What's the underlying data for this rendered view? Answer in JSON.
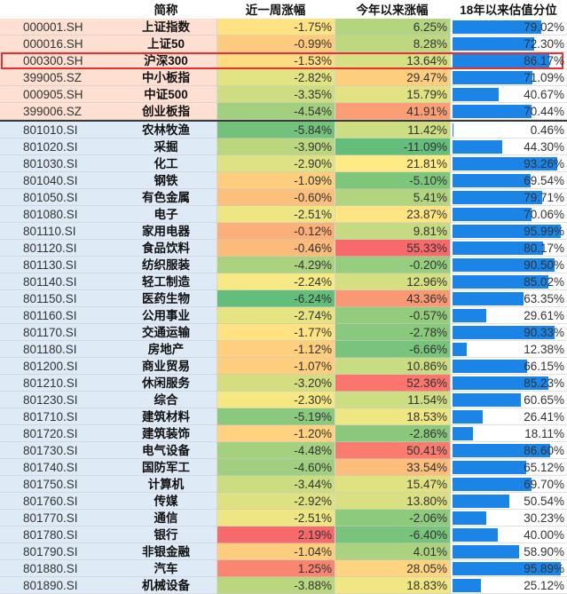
{
  "headers": {
    "name": "简称",
    "week": "近一周涨幅",
    "ytd": "今年以来涨幅",
    "pct": "18年以来估值分位"
  },
  "highlighted_code": "000300.SH",
  "colors": {
    "index_bg": "#fde0d2",
    "industry_bg": "#deeaf6",
    "bar": "#1a85e6",
    "highlight_border": "#e8312f"
  },
  "rows": [
    {
      "code": "000001.SH",
      "name": "上证指数",
      "week": "-1.75%",
      "ytd": "6.25%",
      "pct": "79.02%",
      "group": "index"
    },
    {
      "code": "000016.SH",
      "name": "上证50",
      "week": "-0.99%",
      "ytd": "8.28%",
      "pct": "72.30%",
      "group": "index"
    },
    {
      "code": "000300.SH",
      "name": "沪深300",
      "week": "-1.53%",
      "ytd": "13.64%",
      "pct": "86.17%",
      "group": "index"
    },
    {
      "code": "399005.SZ",
      "name": "中小板指",
      "week": "-2.82%",
      "ytd": "29.47%",
      "pct": "71.09%",
      "group": "index"
    },
    {
      "code": "000905.SH",
      "name": "中证500",
      "week": "-3.35%",
      "ytd": "15.79%",
      "pct": "40.67%",
      "group": "index"
    },
    {
      "code": "399006.SZ",
      "name": "创业板指",
      "week": "-4.54%",
      "ytd": "41.91%",
      "pct": "70.44%",
      "group": "index"
    },
    {
      "code": "801010.SI",
      "name": "农林牧渔",
      "week": "-5.84%",
      "ytd": "11.42%",
      "pct": "0.46%",
      "group": "industry"
    },
    {
      "code": "801020.SI",
      "name": "采掘",
      "week": "-3.90%",
      "ytd": "-11.09%",
      "pct": "44.30%",
      "group": "industry"
    },
    {
      "code": "801030.SI",
      "name": "化工",
      "week": "-2.90%",
      "ytd": "21.81%",
      "pct": "93.26%",
      "group": "industry"
    },
    {
      "code": "801040.SI",
      "name": "钢铁",
      "week": "-1.09%",
      "ytd": "-5.10%",
      "pct": "69.54%",
      "group": "industry"
    },
    {
      "code": "801050.SI",
      "name": "有色金属",
      "week": "-0.60%",
      "ytd": "5.41%",
      "pct": "79.71%",
      "group": "industry"
    },
    {
      "code": "801080.SI",
      "name": "电子",
      "week": "-2.51%",
      "ytd": "23.87%",
      "pct": "70.06%",
      "group": "industry"
    },
    {
      "code": "801110.SI",
      "name": "家用电器",
      "week": "-0.12%",
      "ytd": "9.81%",
      "pct": "95.99%",
      "group": "industry"
    },
    {
      "code": "801120.SI",
      "name": "食品饮料",
      "week": "-0.46%",
      "ytd": "55.33%",
      "pct": "80.17%",
      "group": "industry"
    },
    {
      "code": "801130.SI",
      "name": "纺织服装",
      "week": "-4.29%",
      "ytd": "-0.20%",
      "pct": "90.50%",
      "group": "industry"
    },
    {
      "code": "801140.SI",
      "name": "轻工制造",
      "week": "-2.24%",
      "ytd": "12.96%",
      "pct": "85.02%",
      "group": "industry"
    },
    {
      "code": "801150.SI",
      "name": "医药生物",
      "week": "-6.24%",
      "ytd": "43.36%",
      "pct": "63.35%",
      "group": "industry"
    },
    {
      "code": "801160.SI",
      "name": "公用事业",
      "week": "-2.74%",
      "ytd": "-0.57%",
      "pct": "29.61%",
      "group": "industry"
    },
    {
      "code": "801170.SI",
      "name": "交通运输",
      "week": "-1.77%",
      "ytd": "-2.78%",
      "pct": "90.33%",
      "group": "industry"
    },
    {
      "code": "801180.SI",
      "name": "房地产",
      "week": "-1.12%",
      "ytd": "-6.66%",
      "pct": "12.38%",
      "group": "industry"
    },
    {
      "code": "801200.SI",
      "name": "商业贸易",
      "week": "-1.07%",
      "ytd": "10.86%",
      "pct": "66.15%",
      "group": "industry"
    },
    {
      "code": "801210.SI",
      "name": "休闲服务",
      "week": "-3.20%",
      "ytd": "52.36%",
      "pct": "85.23%",
      "group": "industry"
    },
    {
      "code": "801230.SI",
      "name": "综合",
      "week": "-2.30%",
      "ytd": "11.54%",
      "pct": "60.65%",
      "group": "industry"
    },
    {
      "code": "801710.SI",
      "name": "建筑材料",
      "week": "-5.19%",
      "ytd": "18.53%",
      "pct": "26.41%",
      "group": "industry"
    },
    {
      "code": "801720.SI",
      "name": "建筑装饰",
      "week": "-1.20%",
      "ytd": "-2.86%",
      "pct": "18.11%",
      "group": "industry"
    },
    {
      "code": "801730.SI",
      "name": "电气设备",
      "week": "-4.48%",
      "ytd": "50.41%",
      "pct": "86.60%",
      "group": "industry"
    },
    {
      "code": "801740.SI",
      "name": "国防军工",
      "week": "-4.60%",
      "ytd": "33.54%",
      "pct": "65.12%",
      "group": "industry"
    },
    {
      "code": "801750.SI",
      "name": "计算机",
      "week": "-3.44%",
      "ytd": "15.47%",
      "pct": "69.70%",
      "group": "industry"
    },
    {
      "code": "801760.SI",
      "name": "传媒",
      "week": "-2.92%",
      "ytd": "13.80%",
      "pct": "50.54%",
      "group": "industry"
    },
    {
      "code": "801770.SI",
      "name": "通信",
      "week": "-2.51%",
      "ytd": "-2.06%",
      "pct": "30.23%",
      "group": "industry"
    },
    {
      "code": "801780.SI",
      "name": "银行",
      "week": "2.19%",
      "ytd": "-6.40%",
      "pct": "40.00%",
      "group": "industry"
    },
    {
      "code": "801790.SI",
      "name": "非银金融",
      "week": "-1.04%",
      "ytd": "4.01%",
      "pct": "58.90%",
      "group": "industry"
    },
    {
      "code": "801880.SI",
      "name": "汽车",
      "week": "1.25%",
      "ytd": "28.05%",
      "pct": "95.89%",
      "group": "industry"
    },
    {
      "code": "801890.SI",
      "name": "机械设备",
      "week": "-3.88%",
      "ytd": "18.83%",
      "pct": "25.12%",
      "group": "industry"
    }
  ]
}
